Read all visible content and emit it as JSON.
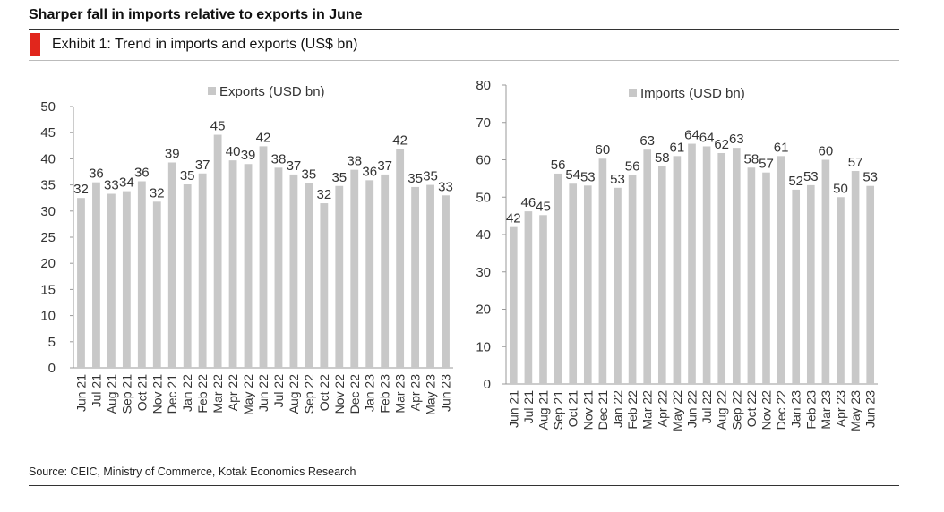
{
  "header": {
    "title": "Sharper fall in imports relative to exports in June",
    "exhibit": "Exhibit 1: Trend in imports and exports (US$ bn)"
  },
  "footer": {
    "source": "Source: CEIC, Ministry of Commerce, Kotak Economics Research"
  },
  "colors": {
    "bar": "#c8c8c8",
    "axis": "#999999",
    "accent": "#e1261c"
  },
  "chart_data": [
    {
      "type": "bar",
      "title": "",
      "legend": "Exports (USD bn)",
      "legend_position": "top-center",
      "categories": [
        "Jun 21",
        "Jul 21",
        "Aug 21",
        "Sep 21",
        "Oct 21",
        "Nov 21",
        "Dec 21",
        "Jan 22",
        "Feb 22",
        "Mar 22",
        "Apr 22",
        "May 22",
        "Jun 22",
        "Jul 22",
        "Aug 22",
        "Sep 22",
        "Oct 22",
        "Nov 22",
        "Dec 22",
        "Jan 23",
        "Feb 23",
        "Mar 23",
        "Apr 23",
        "May 23",
        "Jun 23"
      ],
      "values": [
        32.5,
        35.5,
        33.3,
        33.8,
        35.7,
        31.8,
        39.3,
        35.1,
        37.2,
        44.6,
        39.7,
        39.0,
        42.4,
        38.3,
        37.0,
        35.4,
        31.5,
        34.8,
        37.9,
        35.9,
        37.0,
        41.9,
        34.6,
        35.0,
        33.0
      ],
      "labels": [
        "32",
        "36",
        "33",
        "34",
        "36",
        "32",
        "39",
        "35",
        "37",
        "45",
        "40",
        "39",
        "42",
        "38",
        "37",
        "35",
        "32",
        "35",
        "38",
        "36",
        "37",
        "42",
        "35",
        "35",
        "33"
      ],
      "yticks": [
        "0",
        "5",
        "10",
        "15",
        "20",
        "25",
        "30",
        "35",
        "40",
        "45",
        "50"
      ],
      "ylim": [
        0,
        50
      ]
    },
    {
      "type": "bar",
      "title": "",
      "legend": "Imports (USD bn)",
      "legend_position": "top-center",
      "categories": [
        "Jun 21",
        "Jul 21",
        "Aug 21",
        "Sep 21",
        "Oct 21",
        "Nov 21",
        "Dec 21",
        "Jan 22",
        "Feb 22",
        "Mar 22",
        "Apr 22",
        "May 22",
        "Jun 22",
        "Jul 22",
        "Aug 22",
        "Sep 22",
        "Oct 22",
        "Nov 22",
        "Dec 22",
        "Jan 23",
        "Feb 23",
        "Mar 23",
        "Apr 23",
        "May 23",
        "Jun 23"
      ],
      "values": [
        42.0,
        46.2,
        45.2,
        56.3,
        53.6,
        53.1,
        60.3,
        52.5,
        55.9,
        62.7,
        58.2,
        61.0,
        64.3,
        63.6,
        61.8,
        63.2,
        57.9,
        56.6,
        61.0,
        52.0,
        53.2,
        60.0,
        50.0,
        57.0,
        53.0
      ],
      "labels": [
        "42",
        "46",
        "45",
        "56",
        "54",
        "53",
        "60",
        "53",
        "56",
        "63",
        "58",
        "61",
        "64",
        "64",
        "62",
        "63",
        "58",
        "57",
        "61",
        "52",
        "53",
        "60",
        "50",
        "57",
        "53"
      ],
      "yticks": [
        "0",
        "10",
        "20",
        "30",
        "40",
        "50",
        "60",
        "70",
        "80"
      ],
      "ylim": [
        0,
        80
      ]
    }
  ]
}
